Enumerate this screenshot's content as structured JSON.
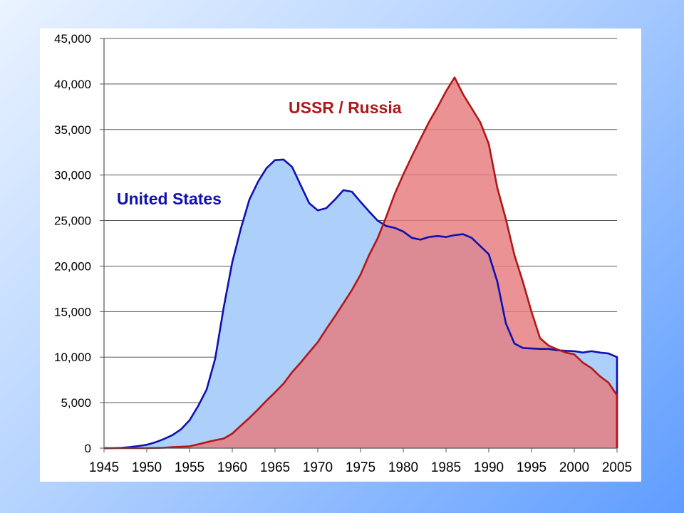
{
  "chart_data": {
    "type": "area",
    "title": "",
    "xlabel": "",
    "ylabel": "",
    "xlim": [
      1945,
      2005
    ],
    "ylim": [
      0,
      45000
    ],
    "grid": true,
    "x_ticks": [
      "1945",
      "1950",
      "1955",
      "1960",
      "1965",
      "1970",
      "1975",
      "1980",
      "1985",
      "1990",
      "1995",
      "2000",
      "2005"
    ],
    "y_ticks": [
      "0",
      "5,000",
      "10,000",
      "15,000",
      "20,000",
      "25,000",
      "30,000",
      "35,000",
      "40,000",
      "45,000"
    ],
    "x": [
      1945,
      1946,
      1947,
      1948,
      1949,
      1950,
      1951,
      1952,
      1953,
      1954,
      1955,
      1956,
      1957,
      1958,
      1959,
      1960,
      1961,
      1962,
      1963,
      1964,
      1965,
      1966,
      1967,
      1968,
      1969,
      1970,
      1971,
      1972,
      1973,
      1974,
      1975,
      1976,
      1977,
      1978,
      1979,
      1980,
      1981,
      1982,
      1983,
      1984,
      1985,
      1986,
      1987,
      1988,
      1989,
      1990,
      1991,
      1992,
      1993,
      1994,
      1995,
      1996,
      1997,
      1998,
      1999,
      2000,
      2001,
      2002,
      2003,
      2004,
      2005
    ],
    "series": [
      {
        "name": "United States",
        "color": "#1010b0",
        "fill": "#acd0fa",
        "values": [
          6,
          11,
          32,
          110,
          235,
          369,
          640,
          1005,
          1436,
          2063,
          3057,
          4618,
          6444,
          9822,
          15468,
          20434,
          24111,
          27297,
          29249,
          30751,
          31642,
          31700,
          30893,
          28884,
          26910,
          26119,
          26365,
          27296,
          28335,
          28170,
          27052,
          26000,
          25000,
          24400,
          24200,
          23800,
          23100,
          22900,
          23200,
          23300,
          23200,
          23400,
          23500,
          23100,
          22200,
          21300,
          18300,
          13700,
          11500,
          11000,
          10950,
          10900,
          10900,
          10750,
          10700,
          10650,
          10500,
          10650,
          10500,
          10400,
          10000
        ]
      },
      {
        "name": "USSR / Russia",
        "color": "#b01818",
        "fill": "#e77a7d",
        "values": [
          0,
          0,
          0,
          0,
          1,
          5,
          25,
          50,
          120,
          150,
          200,
          426,
          660,
          869,
          1060,
          1605,
          2471,
          3322,
          4238,
          5221,
          6129,
          7089,
          8339,
          9399,
          10538,
          11643,
          13092,
          14478,
          15915,
          17385,
          19055,
          21205,
          23044,
          25393,
          27935,
          30062,
          32049,
          33952,
          35804,
          37431,
          39197,
          40723,
          38859,
          37333,
          35805,
          33417,
          28595,
          25155,
          21212,
          18235,
          14978,
          12085,
          11264,
          10860,
          10500,
          10300,
          9400,
          8800,
          7900,
          7200,
          5800
        ]
      }
    ]
  }
}
